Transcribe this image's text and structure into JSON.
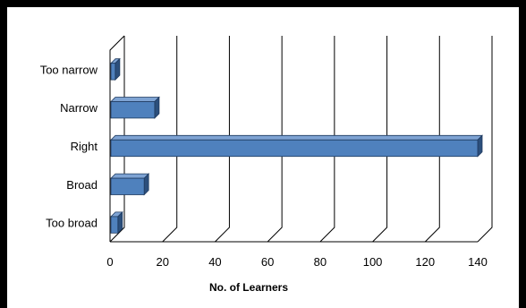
{
  "chart_data": {
    "type": "bar",
    "orientation": "horizontal",
    "style": "3d",
    "categories": [
      "Too narrow",
      "Narrow",
      "Right",
      "Broad",
      "Too broad"
    ],
    "values": [
      2,
      17,
      140,
      13,
      3
    ],
    "xlabel": "No. of Learners",
    "ylabel": "",
    "title": "",
    "xlim": [
      0,
      140
    ],
    "xticks": [
      0,
      20,
      40,
      60,
      80,
      100,
      120,
      140
    ],
    "grid": "vertical",
    "legend": "none",
    "colors": {
      "bar_front": "#4f81bd",
      "bar_top": "#7ea3d3",
      "bar_side": "#2c4f7c",
      "bar_edge": "#1f3a5f",
      "grid": "#000000",
      "background": "#ffffff",
      "border": "#000000"
    }
  }
}
